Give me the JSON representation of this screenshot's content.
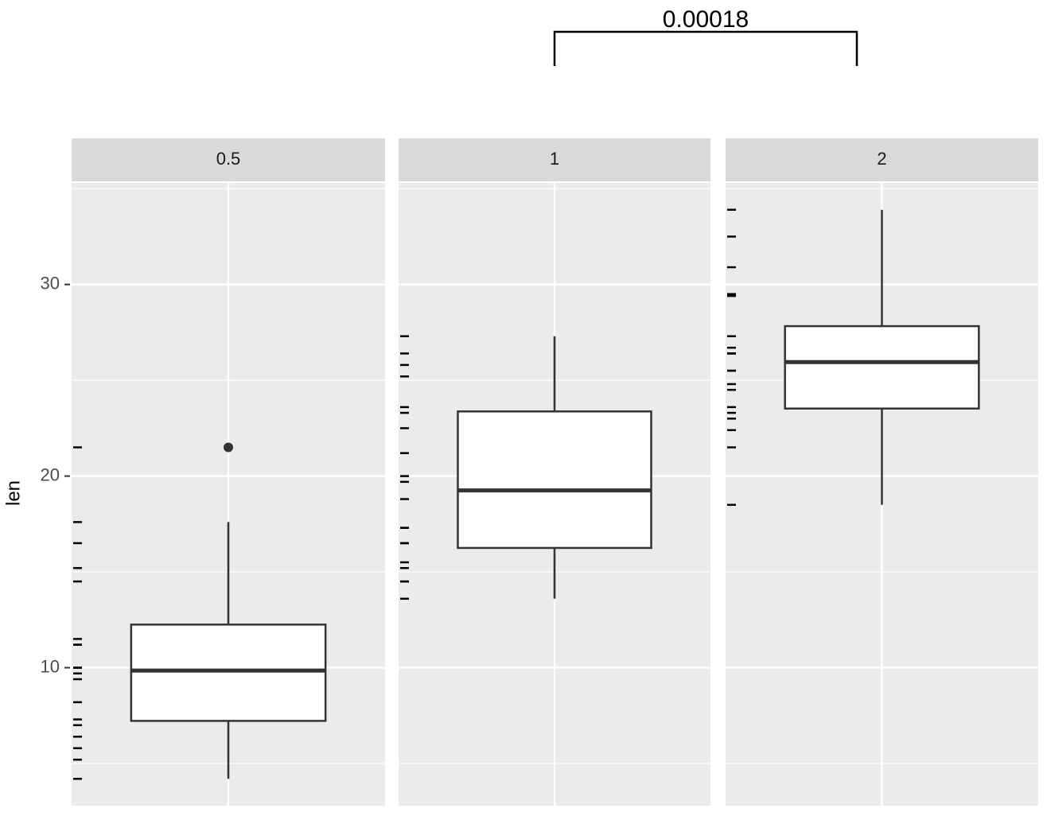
{
  "chart_data": {
    "type": "box",
    "y_label": "len",
    "ylim": [
      2.8,
      35.3
    ],
    "yticks": [
      10,
      20,
      30
    ],
    "minor_yticks": [
      5,
      15,
      25,
      35
    ],
    "grid": true,
    "annotation": "0.00018",
    "panels": [
      {
        "title": "0.5",
        "box": {
          "min": 4.2,
          "q1": 7.225,
          "median": 9.85,
          "q3": 12.25,
          "max": 17.6
        },
        "outliers": [
          21.5
        ],
        "rug": [
          4.2,
          11.5,
          7.3,
          5.8,
          6.4,
          10,
          11.2,
          11.2,
          5.2,
          7,
          15.2,
          21.5,
          17.6,
          9.7,
          14.5,
          10,
          8.2,
          9.4,
          16.5,
          9.7
        ]
      },
      {
        "title": "1",
        "box": {
          "min": 13.6,
          "q1": 16.25,
          "median": 19.25,
          "q3": 23.375,
          "max": 27.3
        },
        "outliers": [],
        "rug": [
          16.5,
          16.5,
          15.2,
          17.3,
          22.5,
          17.3,
          13.6,
          14.5,
          18.8,
          15.5,
          19.7,
          23.3,
          23.6,
          26.4,
          20,
          25.2,
          25.8,
          21.2,
          14.5,
          27.3
        ]
      },
      {
        "title": "2",
        "box": {
          "min": 18.5,
          "q1": 23.525,
          "median": 25.95,
          "q3": 27.825,
          "max": 33.9
        },
        "outliers": [],
        "rug": [
          23.6,
          18.5,
          33.9,
          25.5,
          26.4,
          32.5,
          26.7,
          21.5,
          23.3,
          29.5,
          25.5,
          26.4,
          22.4,
          24.5,
          24.8,
          30.9,
          26.4,
          27.3,
          29.4,
          23
        ]
      }
    ]
  }
}
